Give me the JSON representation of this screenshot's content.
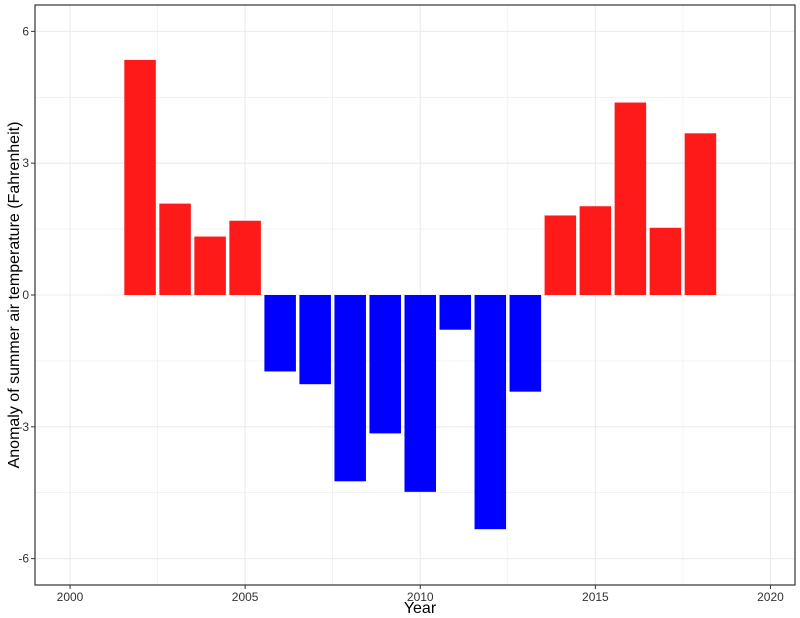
{
  "chart_data": {
    "type": "bar",
    "title": "",
    "xlabel": "Year",
    "ylabel": "Anomaly of summer air temperature (Fahrenheit)",
    "x": [
      2002,
      2003,
      2004,
      2005,
      2006,
      2007,
      2008,
      2009,
      2010,
      2011,
      2012,
      2013,
      2014,
      2015,
      2016,
      2017,
      2018
    ],
    "values": [
      5.35,
      2.08,
      1.33,
      1.69,
      -1.74,
      -2.03,
      -4.24,
      -3.15,
      -4.48,
      -0.79,
      -5.33,
      -2.2,
      1.81,
      2.02,
      4.38,
      1.53,
      3.68
    ],
    "xlim": [
      1999.0,
      2020.7
    ],
    "ylim": [
      -6.6,
      6.6
    ],
    "x_ticks": [
      2000,
      2005,
      2010,
      2015,
      2020
    ],
    "y_ticks": [
      -6,
      -3,
      0,
      3,
      6
    ],
    "x_tick_labels": [
      "2000",
      "2005",
      "2010",
      "2015",
      "2020"
    ],
    "y_tick_labels": [
      "-6",
      "-3",
      "0",
      "3",
      "6"
    ],
    "colors": {
      "positive": "#ff1a1a",
      "negative": "#0000ff",
      "grid": "#ebebeb",
      "panel_border": "#333333"
    },
    "grid": true,
    "legend": "none"
  }
}
